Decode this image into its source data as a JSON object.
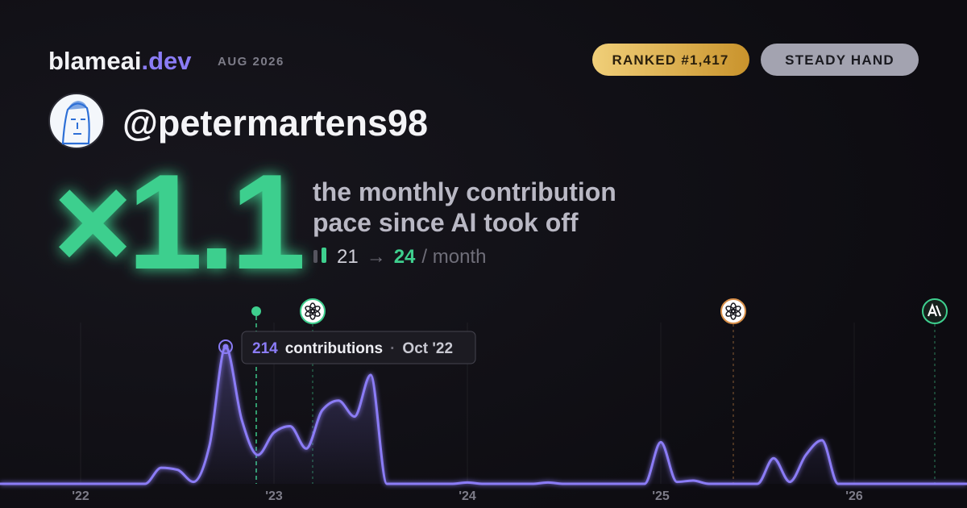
{
  "header": {
    "brand": "blameai",
    "brand_tld": ".dev",
    "date": "AUG 2026",
    "rank": "RANKED #1,417",
    "badge": "STEADY HAND",
    "handle": "@petermartens98"
  },
  "stat": {
    "multiplier": "×1.1",
    "caption_lines": [
      "the monthly contribution",
      "pace since AI took off"
    ],
    "from": 21,
    "arrow": "→",
    "to": 24,
    "unit": "/ month"
  },
  "chart_data": {
    "type": "line",
    "color": "#8b7cf6",
    "x": [
      -5,
      -4,
      -3,
      -2,
      -1,
      0,
      1,
      2,
      3,
      4,
      5,
      6,
      7,
      8,
      9,
      10,
      11,
      12,
      13,
      14,
      15,
      16,
      17,
      18,
      19,
      20,
      21,
      22,
      23,
      24,
      25,
      26,
      27,
      28,
      29,
      30,
      31,
      32,
      33,
      34,
      35,
      36,
      37,
      38,
      39,
      40,
      41,
      42,
      43,
      44,
      45,
      46,
      47,
      48,
      49,
      50,
      51,
      52,
      53,
      54,
      55
    ],
    "values": [
      0,
      0,
      0,
      0,
      0,
      0,
      0,
      0,
      0,
      0,
      25,
      22,
      3,
      60,
      214,
      100,
      45,
      80,
      90,
      55,
      115,
      130,
      105,
      170,
      0,
      0,
      0,
      0,
      0,
      2,
      0,
      0,
      0,
      0,
      2,
      0,
      0,
      0,
      0,
      0,
      0,
      65,
      3,
      5,
      0,
      0,
      0,
      0,
      40,
      3,
      45,
      68,
      0,
      0,
      0,
      0,
      0,
      0,
      0,
      0,
      0
    ],
    "xlim": [
      -5,
      55
    ],
    "xticks": [
      {
        "value": 0,
        "label": "'22"
      },
      {
        "value": 12,
        "label": "'23"
      },
      {
        "value": 24,
        "label": "'24"
      },
      {
        "value": 36,
        "label": "'25"
      },
      {
        "value": 48,
        "label": "'26"
      }
    ],
    "grid": true,
    "tooltip": {
      "label": "contributions",
      "separator": "·",
      "date": "Oct '22"
    },
    "events": [
      {
        "x": 10.9,
        "color": "#3ecf8e",
        "icon": "dot"
      },
      {
        "x": 14.4,
        "color": "#3ecf8e",
        "icon": "openai"
      },
      {
        "x": 40.5,
        "color": "#d9904a",
        "icon": "openai"
      },
      {
        "x": 53,
        "color": "#3ecf8e",
        "icon": "anthropic"
      }
    ]
  }
}
